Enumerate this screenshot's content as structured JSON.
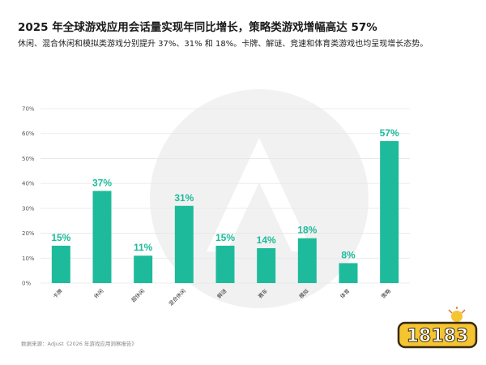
{
  "header": {
    "title": "2025 年全球游戏应用会话量实现年同比增长，策略类游戏增幅高达 57%",
    "subtitle": "休闲、混合休闲和模拟类游戏分别提升 37%、31% 和 18%。卡牌、解谜、竞速和体育类游戏也均呈现增长态势。"
  },
  "footer": {
    "source": "数据来源：Adjust《2026 年游戏应用洞察报告》"
  },
  "logo": {
    "text": "18183"
  },
  "colors": {
    "bar": "#1dbb9b",
    "label": "#1dbb9b",
    "grid": "#e6e6e6",
    "axis_text": "#555555"
  },
  "chart_data": {
    "type": "bar",
    "categories": [
      "卡牌",
      "休闲",
      "超休闲",
      "混合休闲",
      "解谜",
      "赛车",
      "模拟",
      "体育",
      "策略"
    ],
    "values": [
      15,
      37,
      11,
      31,
      15,
      14,
      18,
      8,
      57
    ],
    "data_labels": [
      "15%",
      "37%",
      "11%",
      "31%",
      "15%",
      "14%",
      "18%",
      "8%",
      "57%"
    ],
    "y_ticks": [
      "0%",
      "10%",
      "20%",
      "30%",
      "40%",
      "50%",
      "60%",
      "70%"
    ],
    "ylim": [
      0,
      70
    ],
    "grid": true,
    "unit": "%"
  }
}
